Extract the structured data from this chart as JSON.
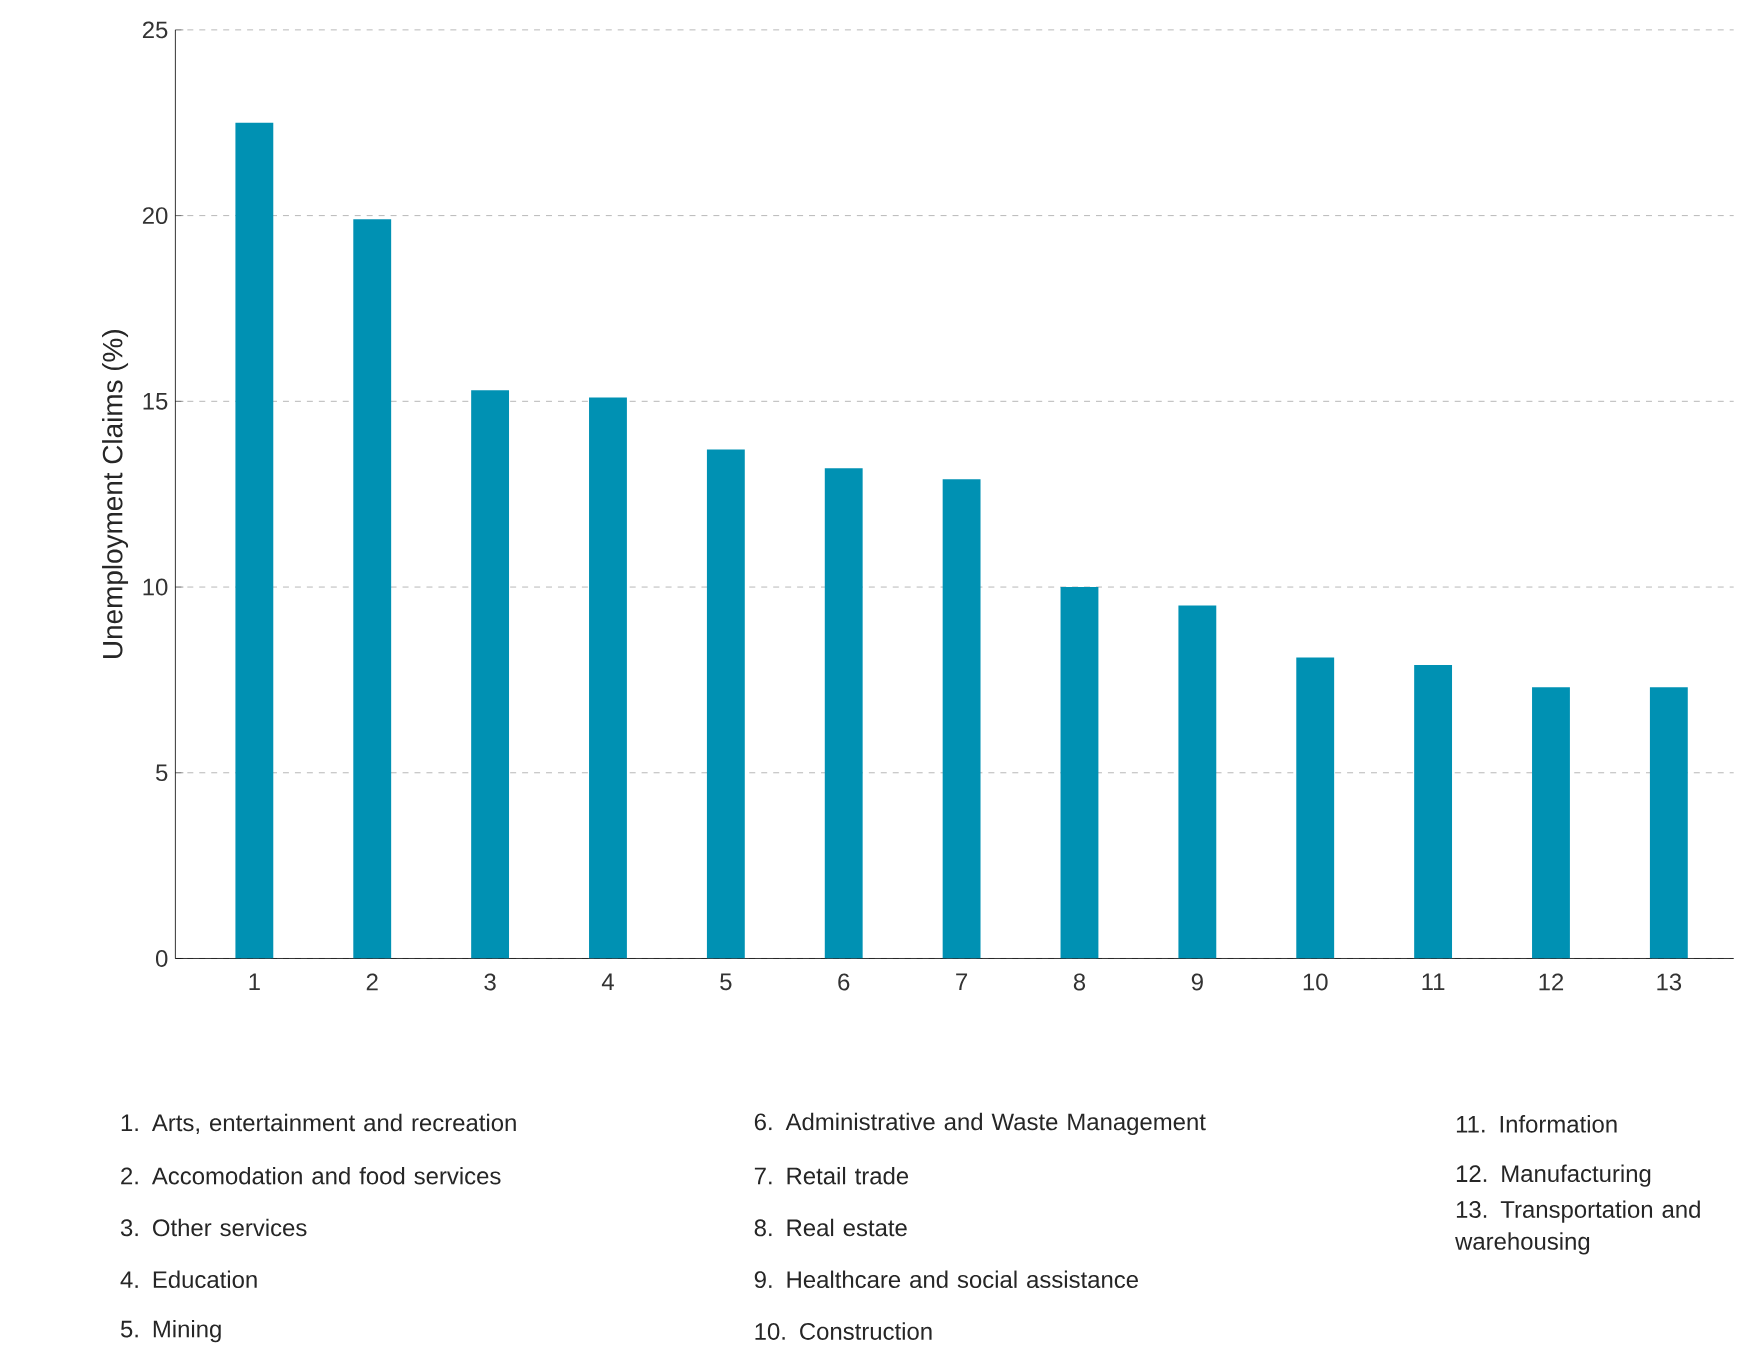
{
  "chart_data": {
    "type": "bar",
    "ylabel": "Unemployment Claims (%)",
    "categories": [
      "1",
      "2",
      "3",
      "4",
      "5",
      "6",
      "7",
      "8",
      "9",
      "10",
      "11",
      "12",
      "13"
    ],
    "values": [
      22.5,
      19.9,
      15.3,
      15.1,
      13.7,
      13.2,
      12.9,
      10.0,
      9.5,
      8.1,
      7.9,
      7.3,
      7.3
    ],
    "color": "#0091b3",
    "ylim": [
      0,
      25
    ],
    "yticks": [
      0,
      5,
      10,
      15,
      20,
      25
    ],
    "grid": "y",
    "annotations": [
      "1. Arts, entertainment and recreation",
      "2. Accomodation and food services",
      "3. Other services",
      "4. Education",
      "5. Mining",
      "6. Administrative and Waste Management",
      "7. Retail trade",
      "8. Real estate",
      "9. Healthcare and social assistance",
      "10. Construction",
      "11. Information",
      "12. Manufacturing",
      "13. Transportation and warehousing"
    ]
  }
}
